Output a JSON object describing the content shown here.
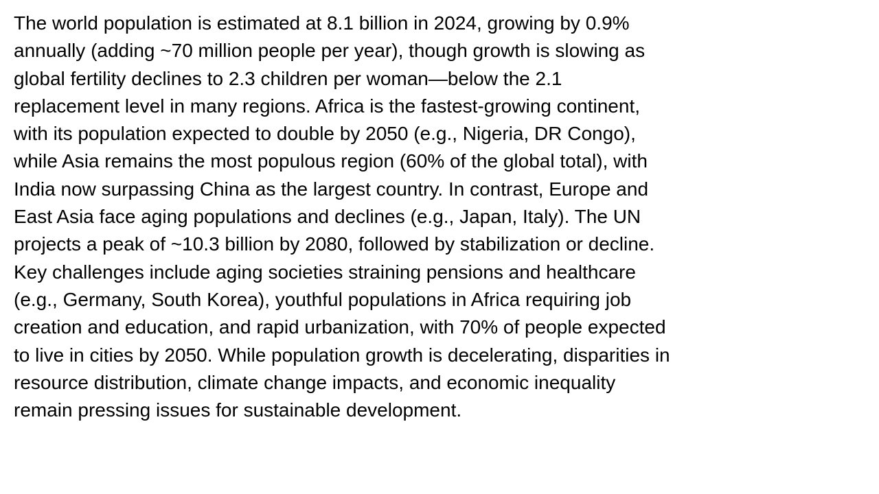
{
  "paragraph": {
    "lines": [
      "The world population is estimated at 8.1 billion in 2024, growing by 0.9%",
      "annually (adding ~70 million people per year), though growth is slowing as",
      "global fertility declines to 2.3 children per woman—below the 2.1",
      "replacement level in many regions. Africa is the fastest-growing continent,",
      "with its population expected to double by 2050 (e.g., Nigeria, DR Congo),",
      "while Asia remains the most populous region (60% of the global total), with",
      "India now surpassing China as the largest country. In contrast, Europe and",
      "East Asia face aging populations and declines (e.g., Japan, Italy). The UN",
      "projects a peak of ~10.3 billion by 2080, followed by stabilization or decline.",
      "Key challenges include aging societies straining pensions and healthcare",
      "(e.g., Germany, South Korea), youthful populations in Africa requiring job",
      "creation and education, and rapid urbanization, with 70% of people expected",
      "to live in cities by 2050. While population growth is decelerating, disparities in",
      "resource distribution, climate change impacts, and economic inequality",
      "remain pressing issues for sustainable development."
    ]
  }
}
